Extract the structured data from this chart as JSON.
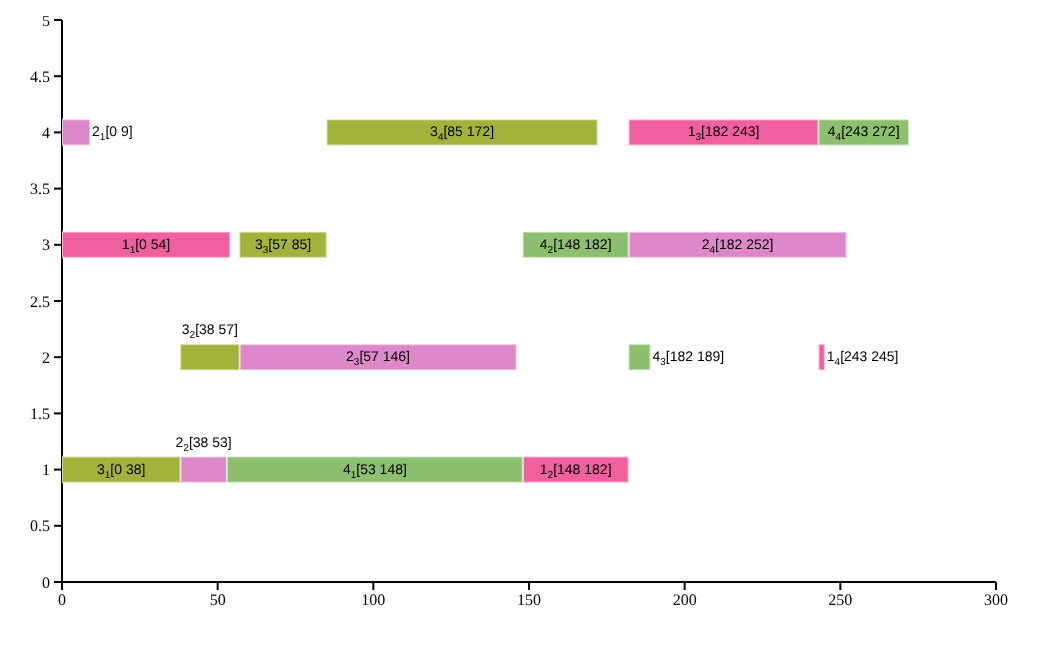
{
  "chart_data": {
    "type": "bar",
    "orientation": "horizontal",
    "xlim": [
      0,
      300
    ],
    "xticks": [
      0,
      50,
      100,
      150,
      200,
      250,
      300
    ],
    "ylim": [
      0,
      5
    ],
    "yticks": [
      0,
      0.5,
      1,
      1.5,
      2,
      2.5,
      3,
      3.5,
      4,
      4.5,
      5
    ],
    "grid": false,
    "legend": false,
    "series": [
      {
        "color": "#f060a0",
        "x": [
          1,
          2,
          3,
          4
        ],
        "base": [
          148,
          243,
          0,
          182
        ],
        "values": [
          34,
          2,
          54,
          61
        ]
      },
      {
        "color": "#dd88c8",
        "x": [
          1,
          2,
          3,
          4
        ],
        "base": [
          38,
          57,
          182,
          0
        ],
        "values": [
          15,
          89,
          70,
          9
        ]
      },
      {
        "color": "#a3b23a",
        "x": [
          1,
          2,
          3,
          4
        ],
        "base": [
          0,
          38,
          57,
          85
        ],
        "values": [
          38,
          19,
          28,
          87
        ]
      },
      {
        "color": "#8cbf6e",
        "x": [
          1,
          2,
          3,
          4
        ],
        "base": [
          53,
          182,
          148,
          243
        ],
        "values": [
          95,
          7,
          34,
          29
        ]
      }
    ],
    "annotations": [
      "1$_{2}$[148 182]",
      "1$_{4}$[243 245]",
      "1$_{1}$[0 54]",
      "1$_{3}$[182 243]",
      "2$_{2}$[38 53]",
      "2$_{3}$[57 146]",
      "2$_{4}$[182 252]",
      "2$_{1}$[0 9]",
      "3$_{1}$[0 38]",
      "3$_{2}$[38 57]",
      "3$_{3}$[57 85]",
      "3$_{4}$[85 172]",
      "4$_{1}$[53 148]",
      "4$_{3}$[182 189]",
      "4$_{2}$[148 182]",
      "4$_{4}$[243 272]"
    ]
  }
}
